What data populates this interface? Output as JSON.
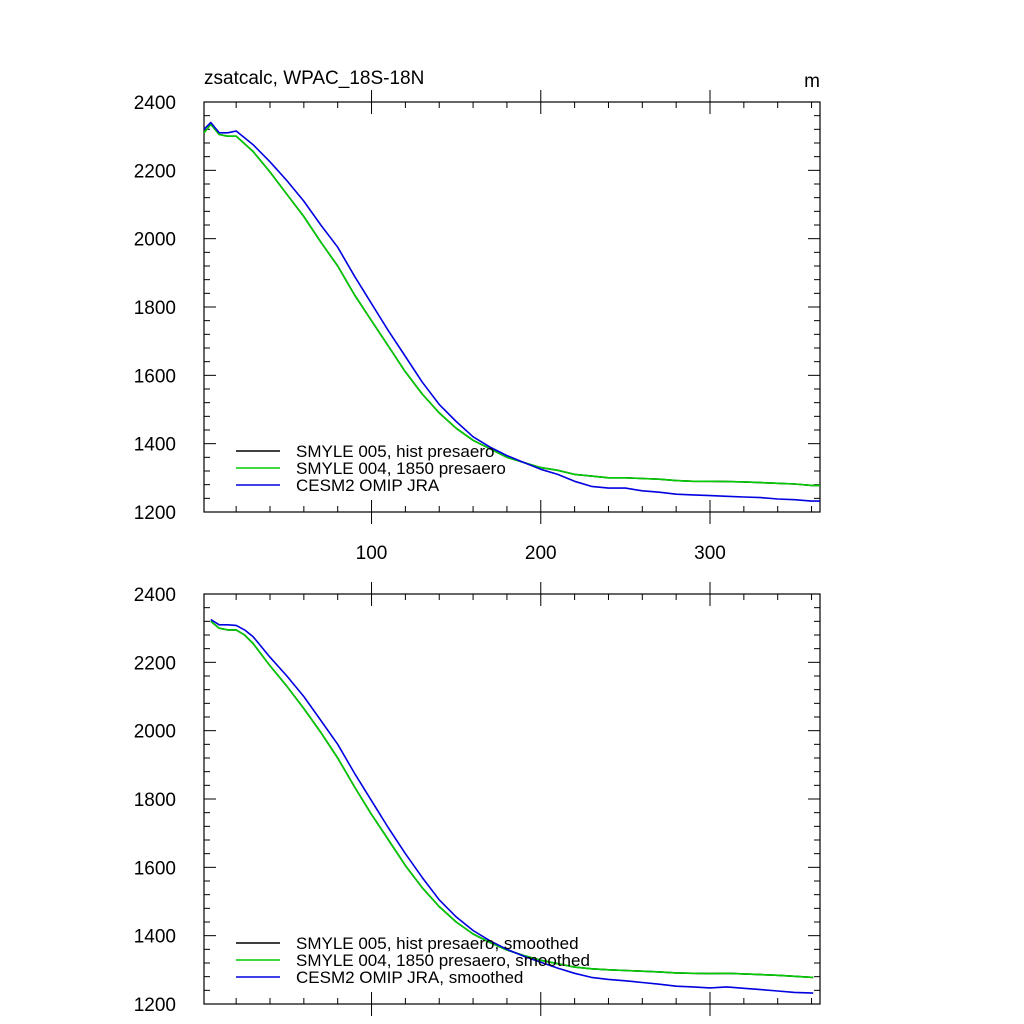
{
  "chart_data": [
    {
      "type": "line",
      "title": "zsatcalc, WPAC_18S-18N",
      "units": "m",
      "xlim": [
        1,
        365
      ],
      "ylim": [
        1200,
        2400
      ],
      "xticks": [
        100,
        200,
        300
      ],
      "yticks": [
        1200,
        1400,
        1600,
        1800,
        2000,
        2200,
        2400
      ],
      "show_xtick_labels": true,
      "grid": false,
      "legend_position": "bottom-left",
      "series": [
        {
          "name": "SMYLE 005, hist presaero",
          "color": "#000000",
          "x": [
            1,
            5,
            10,
            15,
            20,
            30,
            40,
            50,
            60,
            70,
            80,
            90,
            100,
            110,
            120,
            130,
            140,
            150,
            160,
            170,
            180,
            190,
            200,
            210,
            220,
            230,
            240,
            250,
            260,
            270,
            280,
            290,
            300,
            310,
            320,
            330,
            340,
            350,
            360,
            365
          ],
          "y": [
            2310,
            2335,
            2305,
            2300,
            2300,
            2255,
            2195,
            2130,
            2065,
            1990,
            1920,
            1835,
            1760,
            1685,
            1610,
            1545,
            1490,
            1445,
            1410,
            1385,
            1360,
            1345,
            1330,
            1322,
            1310,
            1305,
            1300,
            1300,
            1298,
            1296,
            1292,
            1290,
            1290,
            1289,
            1288,
            1286,
            1284,
            1282,
            1278,
            1278
          ]
        },
        {
          "name": "SMYLE 004, 1850 presaero",
          "color": "#00cc00",
          "x": [
            1,
            5,
            10,
            15,
            20,
            30,
            40,
            50,
            60,
            70,
            80,
            90,
            100,
            110,
            120,
            130,
            140,
            150,
            160,
            170,
            180,
            190,
            200,
            210,
            220,
            230,
            240,
            250,
            260,
            270,
            280,
            290,
            300,
            310,
            320,
            330,
            340,
            350,
            360,
            365
          ],
          "y": [
            2310,
            2335,
            2305,
            2300,
            2300,
            2255,
            2195,
            2130,
            2065,
            1990,
            1920,
            1835,
            1760,
            1685,
            1610,
            1545,
            1490,
            1445,
            1410,
            1385,
            1360,
            1345,
            1330,
            1322,
            1310,
            1305,
            1300,
            1300,
            1298,
            1296,
            1292,
            1290,
            1290,
            1289,
            1288,
            1286,
            1284,
            1282,
            1278,
            1278
          ]
        },
        {
          "name": "CESM2 OMIP JRA",
          "color": "#0000e0",
          "x": [
            1,
            5,
            10,
            15,
            20,
            30,
            40,
            50,
            60,
            70,
            80,
            90,
            100,
            110,
            120,
            130,
            140,
            150,
            160,
            170,
            180,
            190,
            200,
            210,
            220,
            230,
            240,
            250,
            260,
            270,
            280,
            290,
            300,
            310,
            320,
            330,
            340,
            350,
            360,
            365
          ],
          "y": [
            2320,
            2340,
            2310,
            2310,
            2315,
            2275,
            2225,
            2170,
            2110,
            2040,
            1975,
            1890,
            1810,
            1730,
            1655,
            1580,
            1515,
            1465,
            1420,
            1390,
            1365,
            1345,
            1325,
            1310,
            1290,
            1275,
            1270,
            1270,
            1262,
            1258,
            1252,
            1250,
            1248,
            1246,
            1244,
            1242,
            1238,
            1236,
            1232,
            1232
          ]
        }
      ]
    },
    {
      "type": "line",
      "xlim": [
        1,
        365
      ],
      "ylim": [
        1200,
        2400
      ],
      "xticks": [
        100,
        200,
        300
      ],
      "yticks": [
        1200,
        1400,
        1600,
        1800,
        2000,
        2200,
        2400
      ],
      "show_xtick_labels": false,
      "grid": false,
      "legend_position": "bottom-left",
      "series": [
        {
          "name": "SMYLE 005, hist presaero, smoothed",
          "color": "#000000",
          "x": [
            5,
            10,
            15,
            20,
            25,
            30,
            40,
            50,
            60,
            70,
            80,
            90,
            100,
            110,
            120,
            130,
            140,
            150,
            160,
            170,
            180,
            190,
            200,
            210,
            220,
            230,
            240,
            250,
            260,
            270,
            280,
            290,
            300,
            310,
            320,
            330,
            340,
            350,
            361
          ],
          "y": [
            2320,
            2300,
            2295,
            2295,
            2280,
            2255,
            2190,
            2130,
            2065,
            1995,
            1920,
            1835,
            1755,
            1680,
            1605,
            1540,
            1485,
            1440,
            1405,
            1380,
            1358,
            1342,
            1328,
            1318,
            1308,
            1303,
            1300,
            1298,
            1296,
            1294,
            1291,
            1290,
            1289,
            1290,
            1288,
            1286,
            1284,
            1281,
            1278
          ]
        },
        {
          "name": "SMYLE 004, 1850 presaero, smoothed",
          "color": "#00cc00",
          "x": [
            5,
            10,
            15,
            20,
            25,
            30,
            40,
            50,
            60,
            70,
            80,
            90,
            100,
            110,
            120,
            130,
            140,
            150,
            160,
            170,
            180,
            190,
            200,
            210,
            220,
            230,
            240,
            250,
            260,
            270,
            280,
            290,
            300,
            310,
            320,
            330,
            340,
            350,
            361
          ],
          "y": [
            2320,
            2300,
            2295,
            2295,
            2280,
            2255,
            2190,
            2130,
            2065,
            1995,
            1920,
            1835,
            1755,
            1680,
            1605,
            1540,
            1485,
            1440,
            1405,
            1380,
            1358,
            1342,
            1328,
            1318,
            1308,
            1303,
            1300,
            1298,
            1296,
            1294,
            1291,
            1290,
            1289,
            1290,
            1288,
            1286,
            1284,
            1281,
            1278
          ]
        },
        {
          "name": "CESM2 OMIP JRA, smoothed",
          "color": "#0000e0",
          "x": [
            5,
            10,
            15,
            20,
            25,
            30,
            40,
            50,
            60,
            70,
            80,
            90,
            100,
            110,
            120,
            130,
            140,
            150,
            160,
            170,
            180,
            190,
            200,
            210,
            220,
            230,
            240,
            250,
            260,
            270,
            280,
            290,
            300,
            310,
            320,
            330,
            340,
            350,
            361
          ],
          "y": [
            2325,
            2310,
            2310,
            2308,
            2295,
            2275,
            2215,
            2160,
            2100,
            2030,
            1960,
            1875,
            1795,
            1715,
            1640,
            1570,
            1505,
            1455,
            1415,
            1385,
            1360,
            1340,
            1322,
            1305,
            1290,
            1278,
            1272,
            1268,
            1263,
            1258,
            1252,
            1250,
            1247,
            1250,
            1246,
            1242,
            1238,
            1234,
            1232
          ]
        }
      ]
    }
  ]
}
